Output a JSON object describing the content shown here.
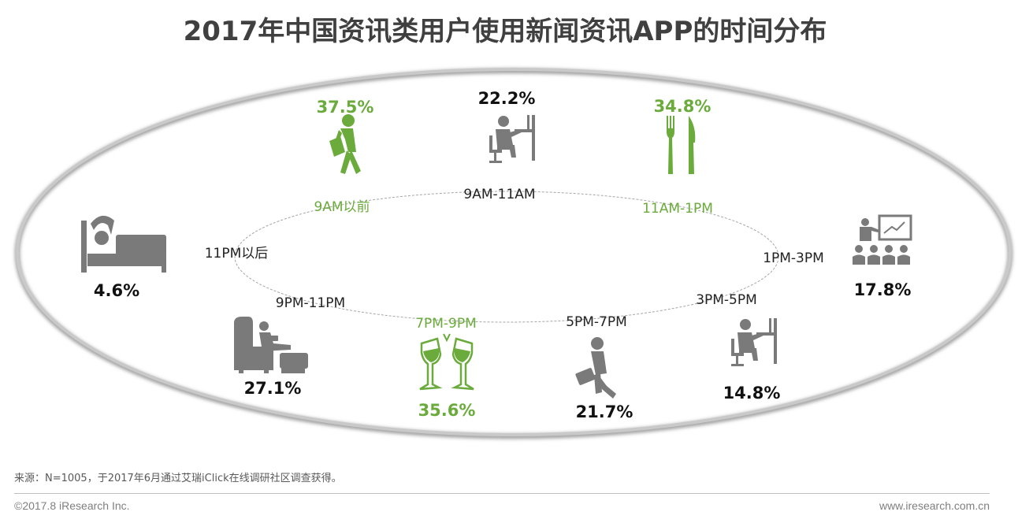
{
  "title": "2017年中国资讯类用户使用新闻资讯APP的时间分布",
  "colors": {
    "highlight": "#6aab3c",
    "normal": "#7a7a7a",
    "text_dark": "#111111"
  },
  "chart_data": {
    "type": "infographic",
    "title": "2017年中国资讯类用户使用新闻资讯APP的时间分布",
    "categories": [
      "9AM以前",
      "9AM-11AM",
      "11AM-1PM",
      "1PM-3PM",
      "3PM-5PM",
      "5PM-7PM",
      "7PM-9PM",
      "9PM-11PM",
      "11PM以后"
    ],
    "values": [
      37.5,
      22.2,
      34.8,
      17.8,
      14.8,
      21.7,
      35.6,
      27.1,
      4.6
    ],
    "value_labels": [
      "37.5%",
      "22.2%",
      "34.8%",
      "17.8%",
      "14.8%",
      "21.7%",
      "35.6%",
      "27.1%",
      "4.6%"
    ],
    "highlighted": [
      true,
      false,
      true,
      false,
      false,
      false,
      true,
      false,
      false
    ],
    "icons": [
      "walking-commuter-icon",
      "office-desk-icon",
      "fork-knife-icon",
      "presentation-meeting-icon",
      "office-desk-icon",
      "briefcase-walker-icon",
      "champagne-toast-icon",
      "armchair-relax-icon",
      "bed-sleep-icon"
    ]
  },
  "footer": {
    "source": "来源：N=1005，于2017年6月通过艾瑞iClick在线调研社区调查获得。",
    "copyright": "©2017.8 iResearch Inc.",
    "website": "www.iresearch.com.cn"
  }
}
